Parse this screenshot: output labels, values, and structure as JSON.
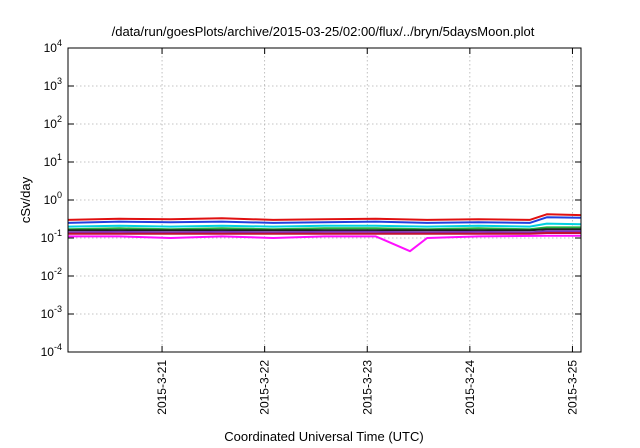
{
  "chart_data": {
    "type": "line",
    "title": "/data/run/goesPlots/archive/2015-03-25/02:00/flux/../bryn/5daysMoon.plot",
    "xlabel": "Coordinated Universal Time (UTC)",
    "ylabel": "cSv/day",
    "yscale": "log",
    "ylim": [
      0.0001,
      10000
    ],
    "xlim": [
      "2015-03-20 02:00",
      "2015-03-25 02:00"
    ],
    "grid": true,
    "y_ticks": [
      {
        "value": 0.0001,
        "base": "10",
        "exp": "-4"
      },
      {
        "value": 0.001,
        "base": "10",
        "exp": "-3"
      },
      {
        "value": 0.01,
        "base": "10",
        "exp": "-2"
      },
      {
        "value": 0.1,
        "base": "10",
        "exp": "-1"
      },
      {
        "value": 1,
        "base": "10",
        "exp": "0"
      },
      {
        "value": 10,
        "base": "10",
        "exp": "1"
      },
      {
        "value": 100,
        "base": "10",
        "exp": "2"
      },
      {
        "value": 1000,
        "base": "10",
        "exp": "3"
      },
      {
        "value": 10000,
        "base": "10",
        "exp": "4"
      }
    ],
    "x_ticks": [
      {
        "value": "2015-03-21 00:00",
        "label": "2015-3-21"
      },
      {
        "value": "2015-03-22 00:00",
        "label": "2015-3-22"
      },
      {
        "value": "2015-03-23 00:00",
        "label": "2015-3-23"
      },
      {
        "value": "2015-03-24 00:00",
        "label": "2015-3-24"
      },
      {
        "value": "2015-03-25 00:00",
        "label": "2015-3-25"
      }
    ],
    "series": [
      {
        "color": "#e01010",
        "x": [
          "2015-03-20 02:00",
          "2015-03-20 14:00",
          "2015-03-21 02:00",
          "2015-03-21 14:00",
          "2015-03-22 02:00",
          "2015-03-22 14:00",
          "2015-03-23 02:00",
          "2015-03-23 14:00",
          "2015-03-24 02:00",
          "2015-03-24 14:00",
          "2015-03-24 18:00",
          "2015-03-25 02:00"
        ],
        "values": [
          0.3,
          0.32,
          0.31,
          0.33,
          0.3,
          0.31,
          0.32,
          0.3,
          0.31,
          0.3,
          0.42,
          0.4
        ]
      },
      {
        "color": "#2040e0",
        "x": [
          "2015-03-20 02:00",
          "2015-03-20 14:00",
          "2015-03-21 02:00",
          "2015-03-21 14:00",
          "2015-03-22 02:00",
          "2015-03-22 14:00",
          "2015-03-23 02:00",
          "2015-03-23 14:00",
          "2015-03-24 02:00",
          "2015-03-24 14:00",
          "2015-03-24 18:00",
          "2015-03-25 02:00"
        ],
        "values": [
          0.25,
          0.27,
          0.26,
          0.27,
          0.25,
          0.26,
          0.27,
          0.25,
          0.26,
          0.25,
          0.35,
          0.34
        ]
      },
      {
        "color": "#00d0e0",
        "x": [
          "2015-03-20 02:00",
          "2015-03-20 14:00",
          "2015-03-21 02:00",
          "2015-03-21 14:00",
          "2015-03-22 02:00",
          "2015-03-22 14:00",
          "2015-03-23 02:00",
          "2015-03-23 14:00",
          "2015-03-24 02:00",
          "2015-03-24 14:00",
          "2015-03-24 18:00",
          "2015-03-25 02:00"
        ],
        "values": [
          0.2,
          0.21,
          0.2,
          0.21,
          0.2,
          0.21,
          0.21,
          0.2,
          0.21,
          0.2,
          0.24,
          0.23
        ]
      },
      {
        "color": "#20b040",
        "x": [
          "2015-03-20 02:00",
          "2015-03-20 14:00",
          "2015-03-21 02:00",
          "2015-03-21 14:00",
          "2015-03-22 02:00",
          "2015-03-22 14:00",
          "2015-03-23 02:00",
          "2015-03-23 14:00",
          "2015-03-24 02:00",
          "2015-03-24 14:00",
          "2015-03-24 18:00",
          "2015-03-25 02:00"
        ],
        "values": [
          0.17,
          0.18,
          0.17,
          0.18,
          0.17,
          0.18,
          0.18,
          0.17,
          0.18,
          0.17,
          0.19,
          0.19
        ]
      },
      {
        "color": "#202020",
        "x": [
          "2015-03-20 02:00",
          "2015-03-20 14:00",
          "2015-03-21 02:00",
          "2015-03-21 14:00",
          "2015-03-22 02:00",
          "2015-03-22 14:00",
          "2015-03-23 02:00",
          "2015-03-23 14:00",
          "2015-03-24 02:00",
          "2015-03-24 14:00",
          "2015-03-24 18:00",
          "2015-03-25 02:00"
        ],
        "values": [
          0.16,
          0.16,
          0.16,
          0.16,
          0.16,
          0.16,
          0.16,
          0.16,
          0.16,
          0.16,
          0.17,
          0.17
        ]
      },
      {
        "color": "#8030c0",
        "x": [
          "2015-03-20 02:00",
          "2015-03-20 14:00",
          "2015-03-21 02:00",
          "2015-03-21 14:00",
          "2015-03-22 02:00",
          "2015-03-22 14:00",
          "2015-03-23 02:00",
          "2015-03-23 14:00",
          "2015-03-24 02:00",
          "2015-03-24 14:00",
          "2015-03-24 18:00",
          "2015-03-25 02:00"
        ],
        "values": [
          0.14,
          0.145,
          0.14,
          0.145,
          0.14,
          0.145,
          0.145,
          0.14,
          0.145,
          0.14,
          0.15,
          0.15
        ]
      },
      {
        "color": "#c01030",
        "x": [
          "2015-03-20 02:00",
          "2015-03-20 14:00",
          "2015-03-21 02:00",
          "2015-03-21 14:00",
          "2015-03-22 02:00",
          "2015-03-22 14:00",
          "2015-03-23 02:00",
          "2015-03-23 14:00",
          "2015-03-24 02:00",
          "2015-03-24 14:00",
          "2015-03-24 18:00",
          "2015-03-25 02:00"
        ],
        "values": [
          0.13,
          0.13,
          0.13,
          0.13,
          0.13,
          0.13,
          0.13,
          0.13,
          0.13,
          0.13,
          0.135,
          0.135
        ]
      },
      {
        "color": "#ff10ff",
        "x": [
          "2015-03-20 02:00",
          "2015-03-20 14:00",
          "2015-03-21 02:00",
          "2015-03-21 14:00",
          "2015-03-22 02:00",
          "2015-03-22 14:00",
          "2015-03-23 02:00",
          "2015-03-23 14:00",
          "2015-03-23 10:00",
          "2015-03-24 02:00",
          "2015-03-24 18:00",
          "2015-03-25 02:00"
        ],
        "values": [
          0.11,
          0.11,
          0.1,
          0.11,
          0.1,
          0.11,
          0.11,
          0.1,
          0.045,
          0.11,
          0.115,
          0.115
        ]
      }
    ]
  }
}
